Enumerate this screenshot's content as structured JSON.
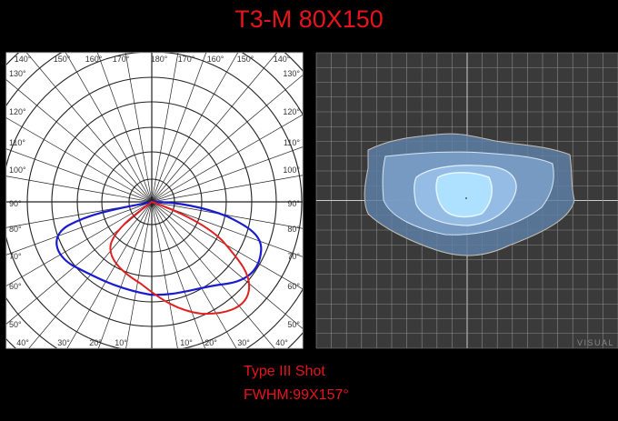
{
  "title": "T3-M 80X150",
  "polar": {
    "top_labels": [
      "140°",
      "150°",
      "160°",
      "170°",
      "180°",
      "170°",
      "160°",
      "150°",
      "140°"
    ],
    "left_labels": [
      "130°",
      "120°",
      "110°",
      "100°",
      "90°",
      "80°",
      "70°",
      "60°",
      "50°"
    ],
    "right_labels": [
      "130°",
      "120°",
      "110°",
      "100°",
      "90°",
      "80°",
      "70°",
      "60°",
      "50°"
    ],
    "bottom_labels": [
      "40°",
      "30°",
      "20°",
      "10°",
      "10°",
      "20°",
      "30°",
      "40°"
    ],
    "curve_colors": {
      "c0_c180": "#1a1ad0",
      "c90_c270": "#e02020"
    }
  },
  "isolux": {
    "watermark": "VISUAL",
    "background": "#3a3a3a",
    "fill": "#9cc8f0"
  },
  "caption": {
    "line1": "Type III Shot",
    "line2": "FWHM:99X157°"
  }
}
